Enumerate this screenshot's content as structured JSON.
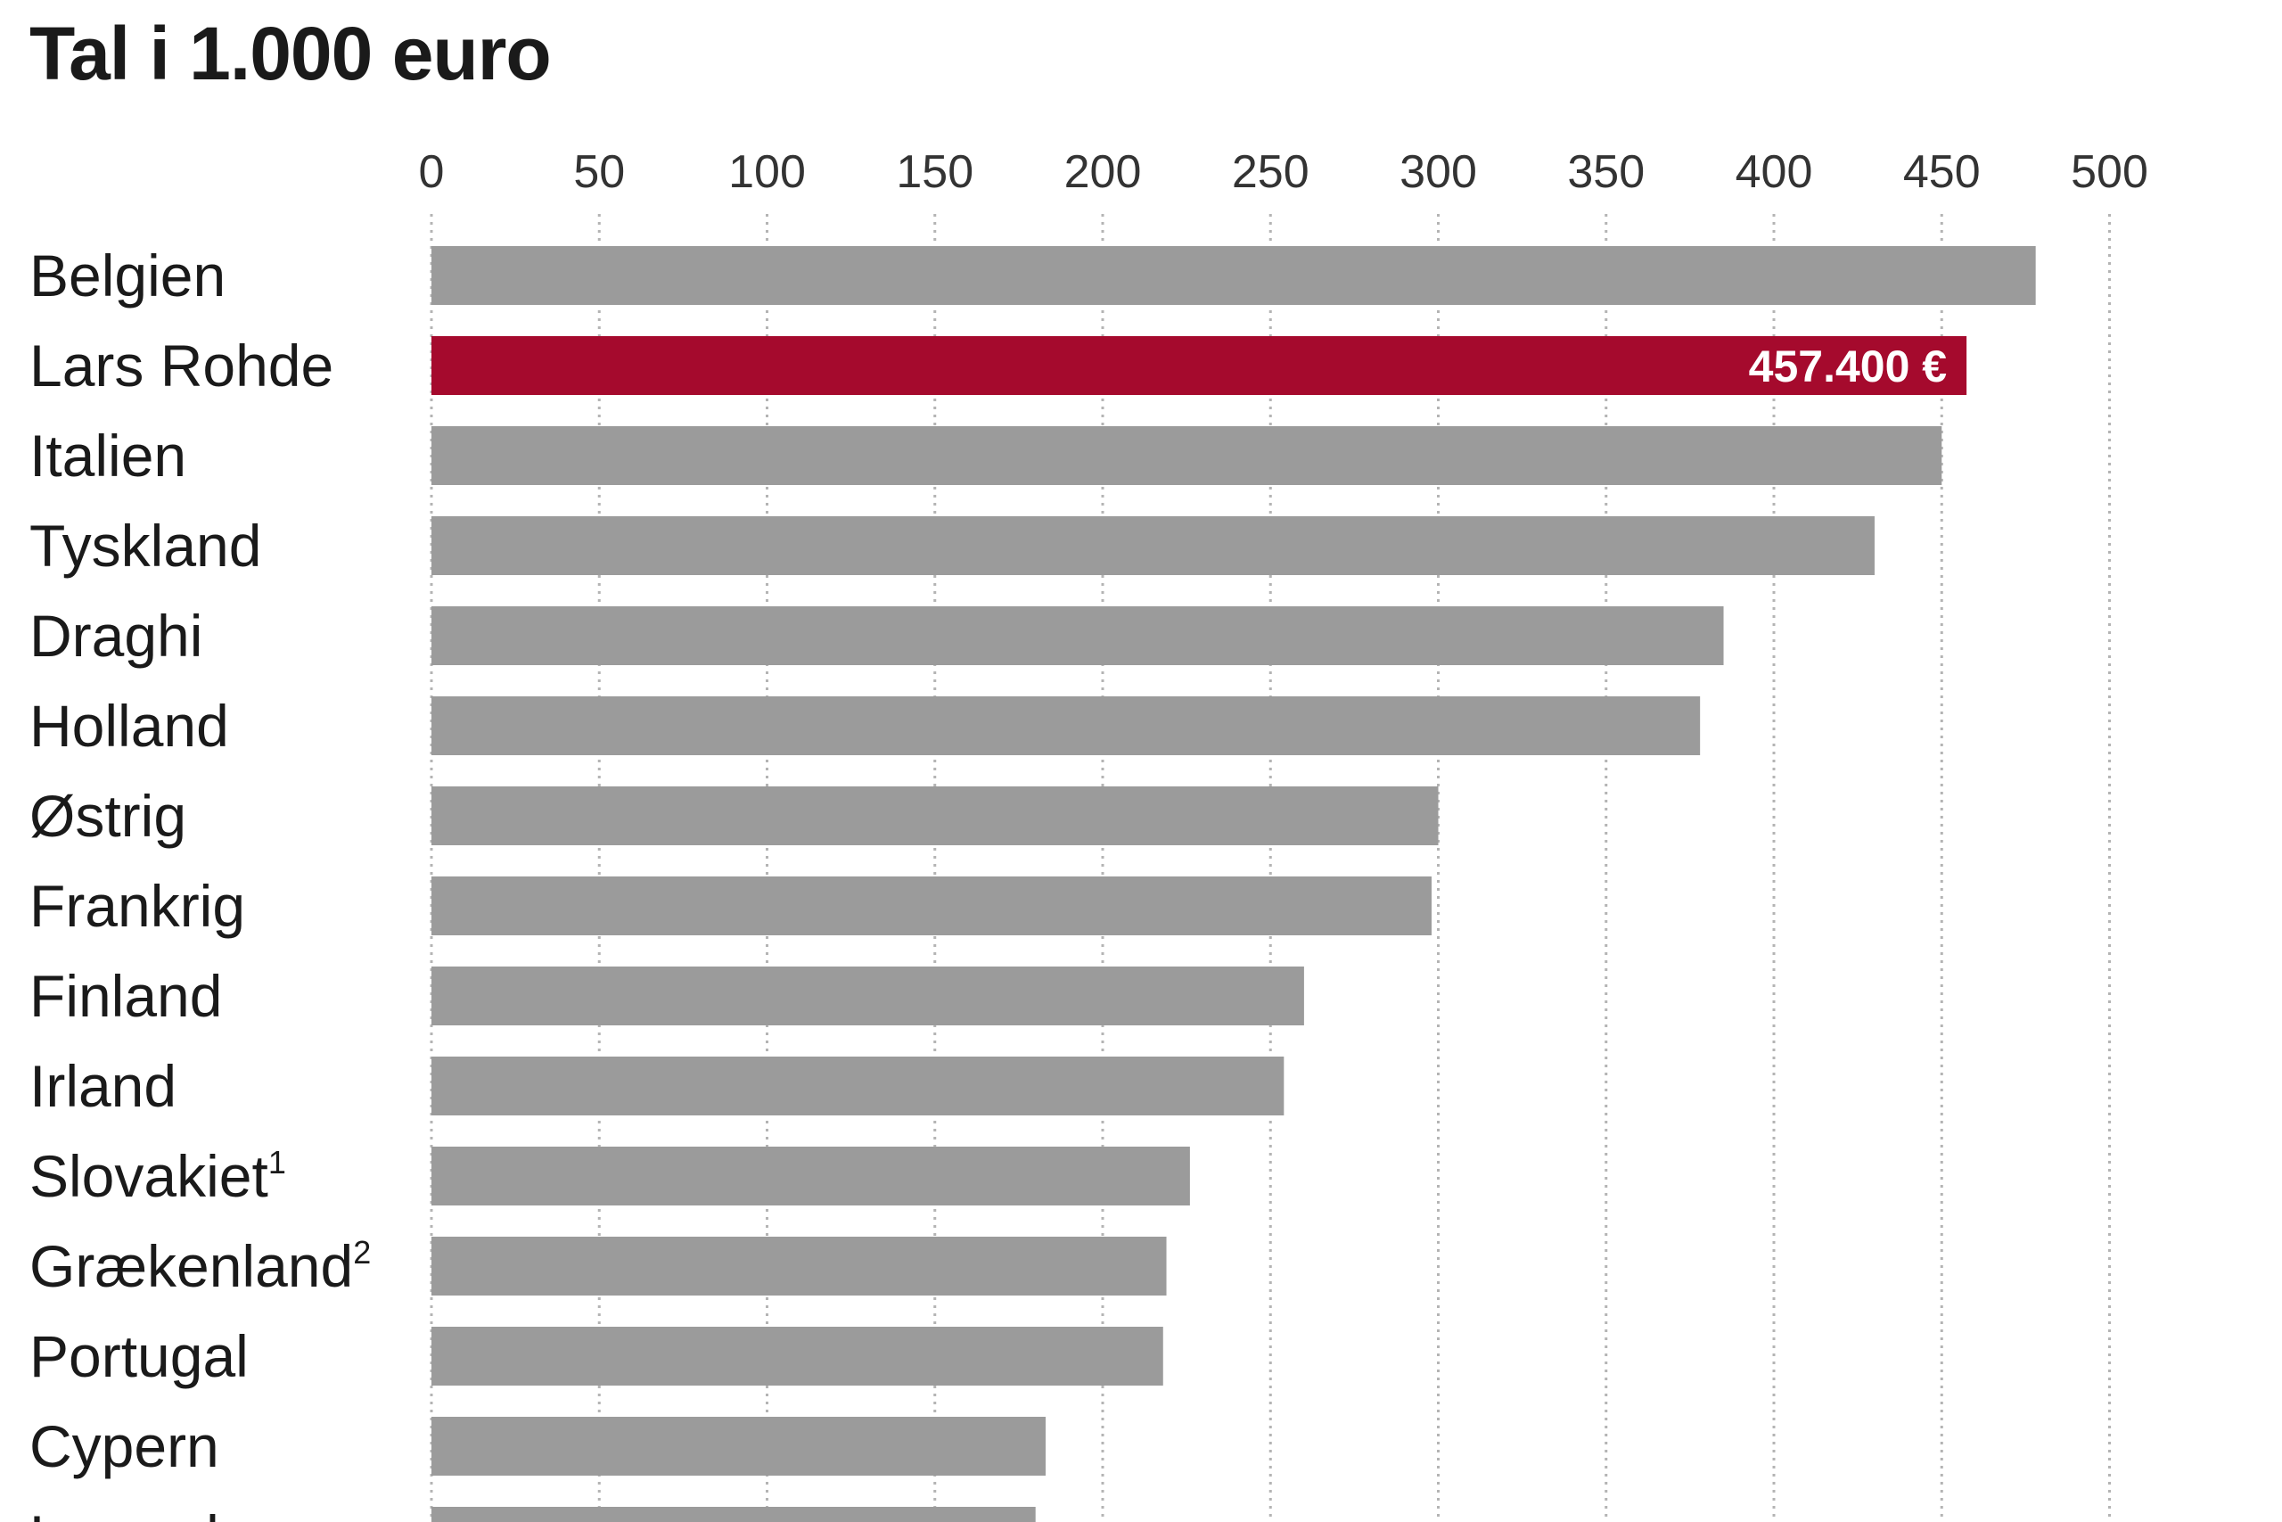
{
  "chart_data": {
    "type": "bar",
    "orientation": "horizontal",
    "title": "Tal i 1.000 euro",
    "xlim": [
      0,
      500
    ],
    "xticks": [
      0,
      50,
      100,
      150,
      200,
      250,
      300,
      350,
      400,
      450,
      500
    ],
    "grid": "vertical dotted",
    "categories": [
      {
        "name": "Belgien",
        "sup": ""
      },
      {
        "name": "Lars Rohde",
        "sup": ""
      },
      {
        "name": "Italien",
        "sup": ""
      },
      {
        "name": "Tyskland",
        "sup": ""
      },
      {
        "name": "Draghi",
        "sup": ""
      },
      {
        "name": "Holland",
        "sup": ""
      },
      {
        "name": "Østrig",
        "sup": ""
      },
      {
        "name": "Frankrig",
        "sup": ""
      },
      {
        "name": "Finland",
        "sup": ""
      },
      {
        "name": "Irland",
        "sup": ""
      },
      {
        "name": "Slovakiet",
        "sup": "1"
      },
      {
        "name": "Grækenland",
        "sup": "2"
      },
      {
        "name": "Portugal",
        "sup": ""
      },
      {
        "name": "Cypern",
        "sup": ""
      },
      {
        "name": "Luxembourg",
        "sup": ""
      }
    ],
    "values": [
      478,
      457.4,
      450,
      430,
      385,
      378,
      300,
      298,
      260,
      254,
      226,
      219,
      218,
      183,
      180
    ],
    "highlight_index": 1,
    "data_labels": {
      "1": "457.400 €"
    },
    "colors": {
      "bar": "#9b9b9b",
      "highlight": "#a50a2d",
      "grid": "#b4b4b4"
    }
  }
}
